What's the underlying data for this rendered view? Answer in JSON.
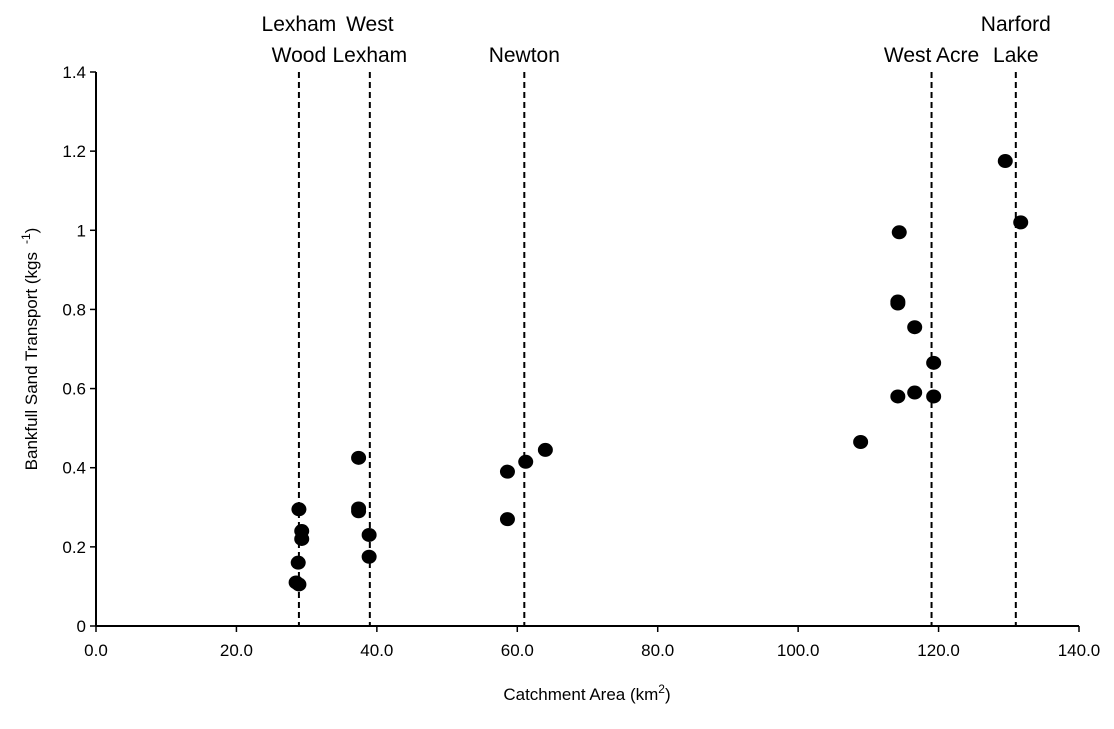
{
  "chart_data": {
    "type": "scatter",
    "title": "",
    "xlabel": "Catchment Area (km",
    "xlabel_sup": "2",
    "xlabel_end": ")",
    "ylabel": "Bankfull Sand Transport (kgs",
    "ylabel_sup": "-1",
    "ylabel_end": ")",
    "xlim": [
      0,
      140
    ],
    "ylim": [
      0,
      1.4
    ],
    "x_ticks": [
      "0.0",
      "20.0",
      "40.0",
      "60.0",
      "80.0",
      "100.0",
      "120.0",
      "140.0"
    ],
    "y_ticks": [
      "0",
      "0.2",
      "0.4",
      "0.6",
      "0.8",
      "1",
      "1.2",
      "1.4"
    ],
    "grid": false,
    "reference_lines": [
      {
        "x": 28.9,
        "label": [
          "Lexham",
          "Wood"
        ]
      },
      {
        "x": 39.0,
        "label": [
          "West",
          "Lexham"
        ]
      },
      {
        "x": 61.0,
        "label": [
          "Newton"
        ]
      },
      {
        "x": 119.0,
        "label": [
          "West Acre"
        ]
      },
      {
        "x": 131.0,
        "label": [
          "Narford",
          "Lake"
        ]
      }
    ],
    "points": [
      {
        "x": 28.5,
        "y": 0.11
      },
      {
        "x": 28.9,
        "y": 0.105
      },
      {
        "x": 28.8,
        "y": 0.16
      },
      {
        "x": 29.3,
        "y": 0.22
      },
      {
        "x": 29.3,
        "y": 0.24
      },
      {
        "x": 28.9,
        "y": 0.295
      },
      {
        "x": 38.9,
        "y": 0.175
      },
      {
        "x": 38.9,
        "y": 0.23
      },
      {
        "x": 37.4,
        "y": 0.29
      },
      {
        "x": 37.4,
        "y": 0.297
      },
      {
        "x": 37.4,
        "y": 0.425
      },
      {
        "x": 58.6,
        "y": 0.27
      },
      {
        "x": 58.6,
        "y": 0.39
      },
      {
        "x": 61.2,
        "y": 0.415
      },
      {
        "x": 64.0,
        "y": 0.445
      },
      {
        "x": 108.9,
        "y": 0.465
      },
      {
        "x": 114.2,
        "y": 0.58
      },
      {
        "x": 114.2,
        "y": 0.815
      },
      {
        "x": 114.2,
        "y": 0.82
      },
      {
        "x": 114.4,
        "y": 0.995
      },
      {
        "x": 116.6,
        "y": 0.59
      },
      {
        "x": 116.6,
        "y": 0.755
      },
      {
        "x": 119.3,
        "y": 0.58
      },
      {
        "x": 119.3,
        "y": 0.665
      },
      {
        "x": 129.5,
        "y": 1.175
      },
      {
        "x": 131.7,
        "y": 1.02
      }
    ]
  }
}
